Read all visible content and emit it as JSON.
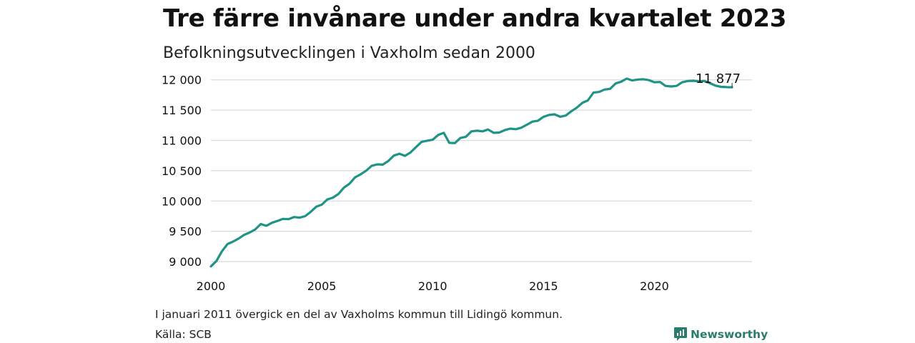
{
  "chart_data": {
    "type": "line",
    "title": "Tre färre invånare under andra kvartalet 2023",
    "subtitle": "Befolkningsutvecklingen i Vaxholm sedan 2000",
    "xlabel": "",
    "ylabel": "",
    "xlim": [
      2000,
      2024.4
    ],
    "ylim": [
      8800,
      12150
    ],
    "y_ticks": [
      9000,
      9500,
      10000,
      10500,
      11000,
      11500,
      12000
    ],
    "y_tick_labels": [
      "9 000",
      "9 500",
      "10 000",
      "10 500",
      "11 000",
      "11 500",
      "12 000"
    ],
    "x_ticks": [
      2000,
      2005,
      2010,
      2015,
      2020
    ],
    "x_tick_labels": [
      "2000",
      "2005",
      "2010",
      "2015",
      "2020"
    ],
    "grid": "horizontal",
    "series": [
      {
        "color": "#1f9486",
        "x": [
          2000.0,
          2000.25,
          2000.5,
          2000.75,
          2001.0,
          2001.25,
          2001.5,
          2001.75,
          2002.0,
          2002.25,
          2002.5,
          2002.75,
          2003.0,
          2003.25,
          2003.5,
          2003.75,
          2004.0,
          2004.25,
          2004.5,
          2004.75,
          2005.0,
          2005.25,
          2005.5,
          2005.75,
          2006.0,
          2006.25,
          2006.5,
          2006.75,
          2007.0,
          2007.25,
          2007.5,
          2007.75,
          2008.0,
          2008.25,
          2008.5,
          2008.75,
          2009.0,
          2009.25,
          2009.5,
          2009.75,
          2010.0,
          2010.25,
          2010.5,
          2010.75,
          2011.0,
          2011.25,
          2011.5,
          2011.75,
          2012.0,
          2012.25,
          2012.5,
          2012.75,
          2013.0,
          2013.25,
          2013.5,
          2013.75,
          2014.0,
          2014.25,
          2014.5,
          2014.75,
          2015.0,
          2015.25,
          2015.5,
          2015.75,
          2016.0,
          2016.25,
          2016.5,
          2016.75,
          2017.0,
          2017.25,
          2017.5,
          2017.75,
          2018.0,
          2018.25,
          2018.5,
          2018.75,
          2019.0,
          2019.25,
          2019.5,
          2019.75,
          2020.0,
          2020.25,
          2020.5,
          2020.75,
          2021.0,
          2021.25,
          2021.5,
          2021.75,
          2022.0,
          2022.25,
          2022.5,
          2022.75,
          2023.0,
          2023.25,
          2023.5
        ],
        "values": [
          8920,
          9010,
          9170,
          9290,
          9330,
          9380,
          9440,
          9480,
          9530,
          9620,
          9590,
          9640,
          9670,
          9705,
          9700,
          9735,
          9725,
          9750,
          9820,
          9905,
          9940,
          10025,
          10055,
          10115,
          10220,
          10285,
          10390,
          10440,
          10500,
          10580,
          10605,
          10600,
          10660,
          10750,
          10780,
          10745,
          10800,
          10890,
          10975,
          10995,
          11010,
          11090,
          11125,
          10960,
          10955,
          11040,
          11060,
          11150,
          11160,
          11150,
          11180,
          11125,
          11130,
          11170,
          11195,
          11185,
          11210,
          11260,
          11310,
          11325,
          11390,
          11420,
          11430,
          11390,
          11410,
          11480,
          11540,
          11620,
          11660,
          11790,
          11800,
          11840,
          11850,
          11940,
          11970,
          12020,
          11990,
          12005,
          12010,
          11995,
          11960,
          11965,
          11900,
          11890,
          11900,
          11960,
          11980,
          11985,
          11975,
          11980,
          11945,
          11905,
          11885,
          11880,
          11877
        ]
      }
    ],
    "end_label": "11 877"
  },
  "footnote": "I januari 2011 övergick en del av Vaxholms kommun till Lidingö kommun.",
  "source": "Källa: SCB",
  "brand": {
    "name": "Newsworthy",
    "color": "#2a7d6d"
  }
}
